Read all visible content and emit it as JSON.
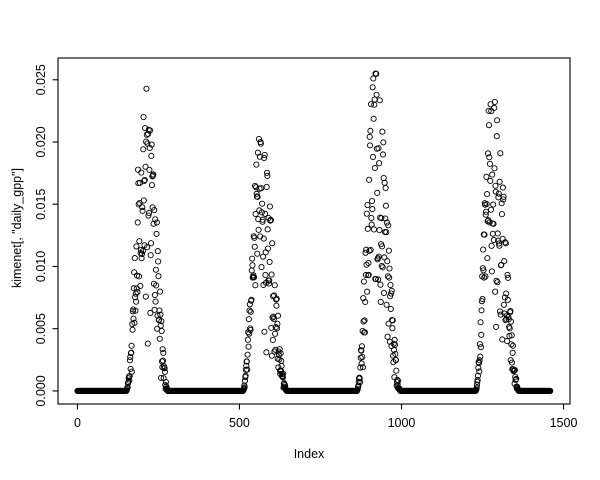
{
  "page": {
    "background_color": "#ffffff",
    "foreground_color": "#000000"
  },
  "chart_data": {
    "type": "scatter",
    "title": "",
    "xlabel": "Index",
    "ylabel": "kimenet[, \"daily_gpp\"]",
    "x_ticks": [
      0,
      500,
      1000,
      1500
    ],
    "x_tick_labels": [
      "0",
      "500",
      "1000",
      "1500"
    ],
    "y_ticks": [
      0,
      0.005,
      0.01,
      0.015,
      0.02,
      0.025
    ],
    "y_tick_labels": [
      "0.000",
      "0.005",
      "0.010",
      "0.015",
      "0.020",
      "0.025"
    ],
    "xlim": [
      -60,
      1520
    ],
    "ylim": [
      -0.00105,
      0.02675
    ],
    "grid": false,
    "legend_position": null,
    "marker": "open-circle",
    "marker_color": "#000000",
    "axis_color": "#000000",
    "n_points": 1460,
    "baseline_value": 0,
    "description": "Daily GPP model output over 4 years: value is exactly 0 through each dormant season (dense black baseline bars) and rises to a noisy seasonal peak during each of the 4 growing seasons.",
    "cycles": [
      {
        "start": 150,
        "peak": 209,
        "end": 279,
        "max": 0.0256
      },
      {
        "start": 510,
        "peak": 563,
        "end": 646,
        "max": 0.0204
      },
      {
        "start": 862,
        "peak": 917,
        "end": 997,
        "max": 0.0257
      },
      {
        "start": 1228,
        "peak": 1278,
        "end": 1362,
        "max": 0.0245
      }
    ],
    "generator": {
      "seed": 7,
      "dip_exponent": 1.6,
      "rise": {
        "dip": 0.55,
        "extra_prob": 0.1
      },
      "fall": {
        "dip": 0.7,
        "extra_prob": 0.22
      },
      "extra_factor": [
        0.4,
        0.85
      ],
      "rise_shape_exp": 2.0,
      "fall_shape_exp": 1.7
    }
  }
}
